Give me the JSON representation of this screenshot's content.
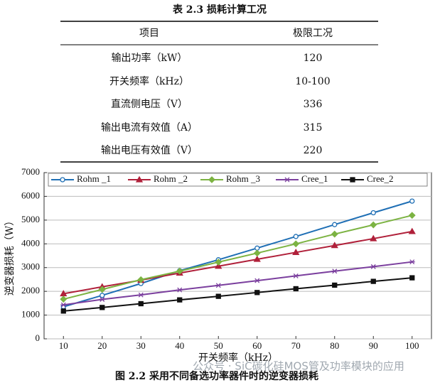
{
  "table": {
    "title": "表 2.3  损耗计算工况",
    "header": [
      "项目",
      "极限工况"
    ],
    "rows": [
      [
        "输出功率（kW）",
        "120"
      ],
      [
        "开关频率（kHz）",
        "10-100"
      ],
      [
        "直流侧电压（V）",
        "336"
      ],
      [
        "输出电流有效值（A）",
        "315"
      ],
      [
        "输出电压有效值（V）",
        "220"
      ]
    ]
  },
  "chart_data": {
    "type": "line",
    "x_label": "开关频率（kHz）",
    "y_label": "逆变器损耗（W）",
    "x": [
      10,
      20,
      30,
      40,
      50,
      60,
      70,
      80,
      90,
      100
    ],
    "xlim": [
      5,
      105
    ],
    "xticks": [
      10,
      20,
      30,
      40,
      50,
      60,
      70,
      80,
      90,
      100
    ],
    "ylim": [
      0,
      7000
    ],
    "yticks": [
      0,
      1000,
      2000,
      3000,
      4000,
      5000,
      6000,
      7000
    ],
    "grid": true,
    "legend": "top",
    "series": [
      {
        "name": "Rohm _1",
        "color": "#1f6fb5",
        "marker": "circle",
        "values": [
          1350,
          1830,
          2330,
          2870,
          3330,
          3820,
          4310,
          4810,
          5310,
          5800
        ]
      },
      {
        "name": "Rohm _2",
        "color": "#b0203a",
        "marker": "triangle",
        "values": [
          1900,
          2190,
          2470,
          2770,
          3060,
          3350,
          3640,
          3930,
          4220,
          4520
        ]
      },
      {
        "name": "Rohm _3",
        "color": "#7cb342",
        "marker": "diamond",
        "values": [
          1670,
          2080,
          2490,
          2850,
          3230,
          3610,
          4000,
          4410,
          4800,
          5200
        ]
      },
      {
        "name": "Cree_1",
        "color": "#7b3f9e",
        "marker": "star",
        "values": [
          1430,
          1660,
          1850,
          2060,
          2250,
          2450,
          2650,
          2850,
          3040,
          3240
        ]
      },
      {
        "name": "Cree_2",
        "color": "#111111",
        "marker": "square",
        "values": [
          1170,
          1320,
          1480,
          1640,
          1790,
          1950,
          2110,
          2260,
          2420,
          2570
        ]
      }
    ]
  },
  "caption": "图 2.2  采用不同备选功率器件时的逆变器损耗",
  "watermark": "公众号 · SiC碳化硅MOS管及功率模块的应用"
}
